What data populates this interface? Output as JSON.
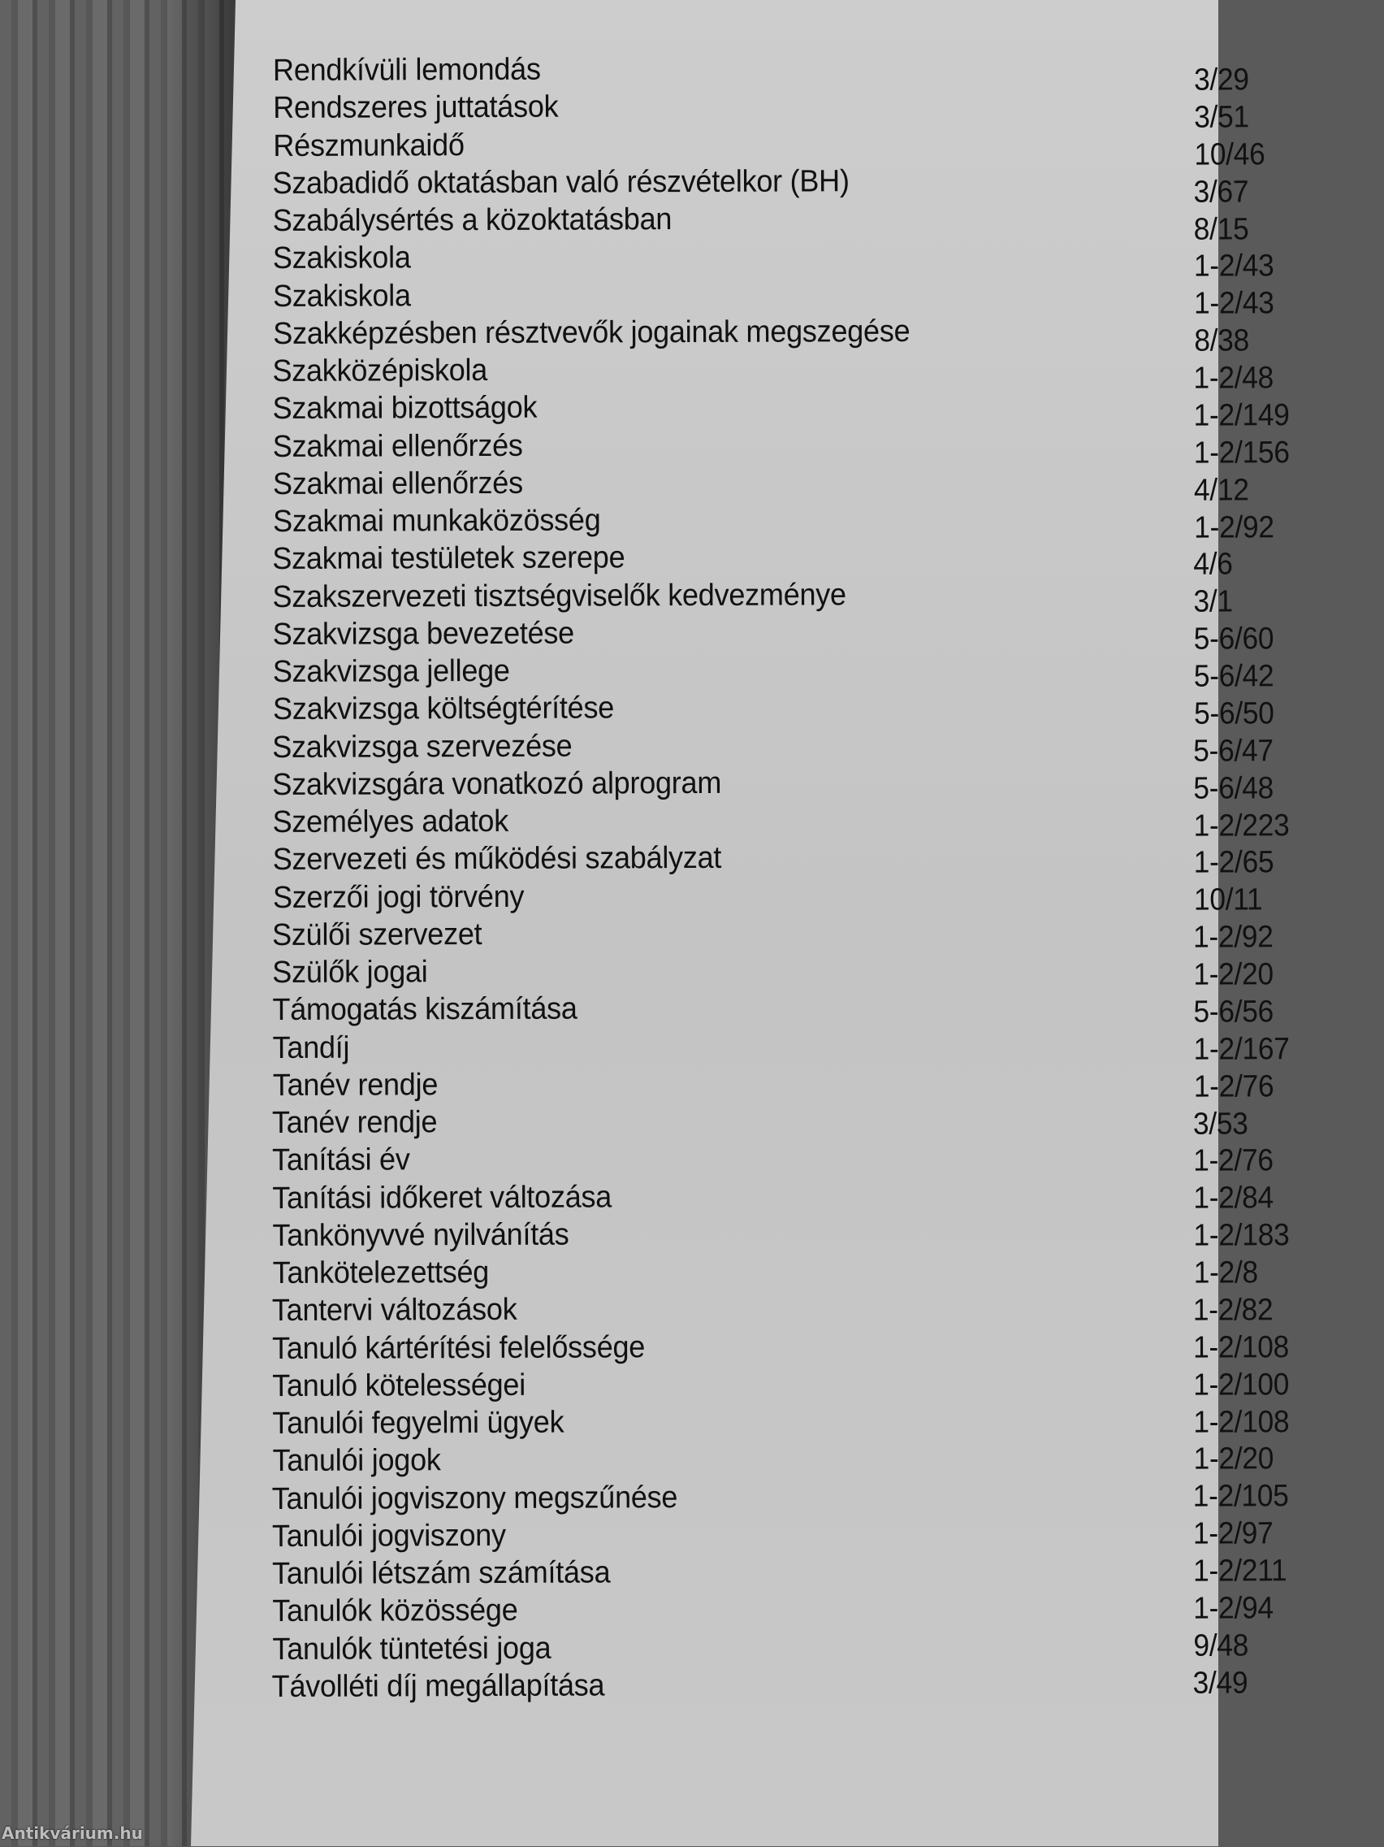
{
  "entries": [
    {
      "label": "Rendkívüli lemondás",
      "ref": "3/29"
    },
    {
      "label": "Rendszeres juttatások",
      "ref": "3/51"
    },
    {
      "label": "Részmunkaidő",
      "ref": "10/46"
    },
    {
      "label": "Szabadidő oktatásban való részvételkor (BH)",
      "ref": "3/67"
    },
    {
      "label": "Szabálysértés a közoktatásban",
      "ref": "8/15"
    },
    {
      "label": "Szakiskola",
      "ref": "1-2/43"
    },
    {
      "label": "Szakiskola",
      "ref": "1-2/43"
    },
    {
      "label": "Szakképzésben résztvevők jogainak megszegése",
      "ref": "8/38"
    },
    {
      "label": "Szakközépiskola",
      "ref": "1-2/48"
    },
    {
      "label": "Szakmai bizottságok",
      "ref": "1-2/149"
    },
    {
      "label": "Szakmai ellenőrzés",
      "ref": "1-2/156"
    },
    {
      "label": "Szakmai ellenőrzés",
      "ref": "4/12"
    },
    {
      "label": "Szakmai munkaközösség",
      "ref": "1-2/92"
    },
    {
      "label": "Szakmai testületek szerepe",
      "ref": "4/6"
    },
    {
      "label": "Szakszervezeti tisztségviselők kedvezménye",
      "ref": "3/1"
    },
    {
      "label": "Szakvizsga bevezetése",
      "ref": "5-6/60"
    },
    {
      "label": "Szakvizsga jellege",
      "ref": "5-6/42"
    },
    {
      "label": "Szakvizsga költségtérítése",
      "ref": "5-6/50"
    },
    {
      "label": "Szakvizsga szervezése",
      "ref": "5-6/47"
    },
    {
      "label": "Szakvizsgára vonatkozó alprogram",
      "ref": "5-6/48"
    },
    {
      "label": "Személyes adatok",
      "ref": "1-2/223"
    },
    {
      "label": "Szervezeti és működési szabályzat",
      "ref": "1-2/65"
    },
    {
      "label": "Szerzői jogi törvény",
      "ref": "10/11"
    },
    {
      "label": "Szülői szervezet",
      "ref": "1-2/92"
    },
    {
      "label": "Szülők jogai",
      "ref": "1-2/20"
    },
    {
      "label": "Támogatás kiszámítása",
      "ref": "5-6/56"
    },
    {
      "label": "Tandíj",
      "ref": "1-2/167"
    },
    {
      "label": "Tanév rendje",
      "ref": "1-2/76"
    },
    {
      "label": "Tanév rendje",
      "ref": "3/53"
    },
    {
      "label": "Tanítási év",
      "ref": "1-2/76"
    },
    {
      "label": "Tanítási időkeret változása",
      "ref": "1-2/84"
    },
    {
      "label": "Tankönyvvé nyilvánítás",
      "ref": "1-2/183"
    },
    {
      "label": "Tankötelezettség",
      "ref": "1-2/8"
    },
    {
      "label": "Tantervi változások",
      "ref": "1-2/82"
    },
    {
      "label": "Tanuló kártérítési felelőssége",
      "ref": "1-2/108"
    },
    {
      "label": "Tanuló kötelességei",
      "ref": "1-2/100"
    },
    {
      "label": "Tanulói fegyelmi ügyek",
      "ref": "1-2/108"
    },
    {
      "label": "Tanulói jogok",
      "ref": "1-2/20"
    },
    {
      "label": "Tanulói jogviszony megszűnése",
      "ref": "1-2/105"
    },
    {
      "label": "Tanulói jogviszony",
      "ref": "1-2/97"
    },
    {
      "label": "Tanulói létszám számítása",
      "ref": "1-2/211"
    },
    {
      "label": "Tanulók közössége",
      "ref": "1-2/94"
    },
    {
      "label": "Tanulók tüntetési joga",
      "ref": "9/48"
    },
    {
      "label": "Távolléti díj megállapítása",
      "ref": "3/49"
    }
  ],
  "watermark": "Antikvárium.hu"
}
